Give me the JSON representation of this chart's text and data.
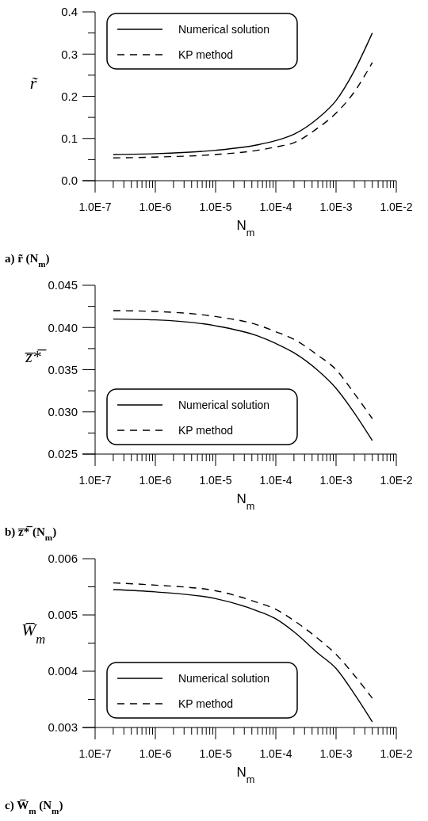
{
  "chart_data": [
    {
      "type": "line",
      "xlabel": "N$_{m}$",
      "ylabel": "r̃",
      "annotations": [
        "a) r̃ (N$_{m}$)"
      ],
      "log": "x",
      "legend": "top left",
      "grid": false,
      "xlim": [
        1e-07,
        0.01
      ],
      "xticks": [
        {
          "value": 1e-07,
          "label": "1.0E-7"
        },
        {
          "value": 2e-07,
          "label": null
        },
        {
          "value": 3e-07,
          "label": null
        },
        {
          "value": 4e-07,
          "label": null
        },
        {
          "value": 5e-07,
          "label": null
        },
        {
          "value": 6e-07,
          "label": null
        },
        {
          "value": 7e-07,
          "label": null
        },
        {
          "value": 8e-07,
          "label": null
        },
        {
          "value": 9e-07,
          "label": null
        },
        {
          "value": 1e-06,
          "label": "1.0E-6"
        },
        {
          "value": 2e-06,
          "label": null
        },
        {
          "value": 3e-06,
          "label": null
        },
        {
          "value": 4e-06,
          "label": null
        },
        {
          "value": 5e-06,
          "label": null
        },
        {
          "value": 6e-06,
          "label": null
        },
        {
          "value": 7e-06,
          "label": null
        },
        {
          "value": 8e-06,
          "label": null
        },
        {
          "value": 9e-06,
          "label": null
        },
        {
          "value": 1e-05,
          "label": "1.0E-5"
        },
        {
          "value": 2e-05,
          "label": null
        },
        {
          "value": 3e-05,
          "label": null
        },
        {
          "value": 4e-05,
          "label": null
        },
        {
          "value": 5e-05,
          "label": null
        },
        {
          "value": 6e-05,
          "label": null
        },
        {
          "value": 7e-05,
          "label": null
        },
        {
          "value": 8e-05,
          "label": null
        },
        {
          "value": 9e-05,
          "label": null
        },
        {
          "value": 0.0001,
          "label": "1.0E-4"
        },
        {
          "value": 0.0002,
          "label": null
        },
        {
          "value": 0.0003,
          "label": null
        },
        {
          "value": 0.0004,
          "label": null
        },
        {
          "value": 0.0005,
          "label": null
        },
        {
          "value": 0.0006,
          "label": null
        },
        {
          "value": 0.0007,
          "label": null
        },
        {
          "value": 0.0008,
          "label": null
        },
        {
          "value": 0.0009,
          "label": null
        },
        {
          "value": 0.001,
          "label": "1.0E-3"
        },
        {
          "value": 0.002,
          "label": null
        },
        {
          "value": 0.003,
          "label": null
        },
        {
          "value": 0.004,
          "label": null
        },
        {
          "value": 0.005,
          "label": null
        },
        {
          "value": 0.006,
          "label": null
        },
        {
          "value": 0.007,
          "label": null
        },
        {
          "value": 0.008,
          "label": null
        },
        {
          "value": 0.009,
          "label": null
        },
        {
          "value": 0.01,
          "label": "1.0E-2"
        }
      ],
      "ylim": [
        0,
        0.4
      ],
      "yticks": [
        {
          "value": 0,
          "label": "0.0"
        },
        {
          "value": 0.05,
          "label": null
        },
        0.1,
        {
          "value": 0.15,
          "label": null
        },
        0.2,
        {
          "value": 0.25,
          "label": null
        },
        0.3,
        {
          "value": 0.35,
          "label": null
        },
        0.4
      ],
      "x": [
        2e-07,
        1e-06,
        1e-05,
        5e-05,
        0.0001,
        0.0002,
        0.0005,
        0.001,
        0.002,
        0.004
      ],
      "series": [
        {
          "name": "Numerical solution",
          "color": "#000000",
          "line_style": "solid",
          "values": [
            0.062,
            0.064,
            0.072,
            0.085,
            0.095,
            0.11,
            0.148,
            0.19,
            0.26,
            0.35
          ]
        },
        {
          "name": "KP method",
          "color": "#000000",
          "line_style": "dashed",
          "values": [
            0.054,
            0.056,
            0.062,
            0.072,
            0.08,
            0.09,
            0.125,
            0.16,
            0.21,
            0.28
          ]
        }
      ]
    },
    {
      "type": "line",
      "xlabel": "N$_{m}$",
      "ylabel": "z̅*̅",
      "annotations": [
        "b) z̅*̅ (N$_{m}$)"
      ],
      "log": "x",
      "legend": "bottom left",
      "grid": false,
      "xlim": [
        1e-07,
        0.01
      ],
      "xticks": [
        {
          "value": 1e-07,
          "label": "1.0E-7"
        },
        {
          "value": 2e-07,
          "label": null
        },
        {
          "value": 3e-07,
          "label": null
        },
        {
          "value": 4e-07,
          "label": null
        },
        {
          "value": 5e-07,
          "label": null
        },
        {
          "value": 6e-07,
          "label": null
        },
        {
          "value": 7e-07,
          "label": null
        },
        {
          "value": 8e-07,
          "label": null
        },
        {
          "value": 9e-07,
          "label": null
        },
        {
          "value": 1e-06,
          "label": "1.0E-6"
        },
        {
          "value": 2e-06,
          "label": null
        },
        {
          "value": 3e-06,
          "label": null
        },
        {
          "value": 4e-06,
          "label": null
        },
        {
          "value": 5e-06,
          "label": null
        },
        {
          "value": 6e-06,
          "label": null
        },
        {
          "value": 7e-06,
          "label": null
        },
        {
          "value": 8e-06,
          "label": null
        },
        {
          "value": 9e-06,
          "label": null
        },
        {
          "value": 1e-05,
          "label": "1.0E-5"
        },
        {
          "value": 2e-05,
          "label": null
        },
        {
          "value": 3e-05,
          "label": null
        },
        {
          "value": 4e-05,
          "label": null
        },
        {
          "value": 5e-05,
          "label": null
        },
        {
          "value": 6e-05,
          "label": null
        },
        {
          "value": 7e-05,
          "label": null
        },
        {
          "value": 8e-05,
          "label": null
        },
        {
          "value": 9e-05,
          "label": null
        },
        {
          "value": 0.0001,
          "label": "1.0E-4"
        },
        {
          "value": 0.0002,
          "label": null
        },
        {
          "value": 0.0003,
          "label": null
        },
        {
          "value": 0.0004,
          "label": null
        },
        {
          "value": 0.0005,
          "label": null
        },
        {
          "value": 0.0006,
          "label": null
        },
        {
          "value": 0.0007,
          "label": null
        },
        {
          "value": 0.0008,
          "label": null
        },
        {
          "value": 0.0009,
          "label": null
        },
        {
          "value": 0.001,
          "label": "1.0E-3"
        },
        {
          "value": 0.002,
          "label": null
        },
        {
          "value": 0.003,
          "label": null
        },
        {
          "value": 0.004,
          "label": null
        },
        {
          "value": 0.005,
          "label": null
        },
        {
          "value": 0.006,
          "label": null
        },
        {
          "value": 0.007,
          "label": null
        },
        {
          "value": 0.008,
          "label": null
        },
        {
          "value": 0.009,
          "label": null
        },
        {
          "value": 0.01,
          "label": "1.0E-2"
        }
      ],
      "ylim": [
        0.025,
        0.045
      ],
      "yticks": [
        {
          "value": 0.025,
          "label": "0.025"
        },
        {
          "value": 0.0275,
          "label": null
        },
        {
          "value": 0.03,
          "label": "0.030"
        },
        {
          "value": 0.0325,
          "label": null
        },
        {
          "value": 0.035,
          "label": "0.035"
        },
        {
          "value": 0.0375,
          "label": null
        },
        {
          "value": 0.04,
          "label": "0.040"
        },
        {
          "value": 0.0425,
          "label": null
        },
        {
          "value": 0.045,
          "label": "0.045"
        }
      ],
      "x": [
        2e-07,
        1e-06,
        1e-05,
        5e-05,
        0.0001,
        0.0002,
        0.0005,
        0.001,
        0.002,
        0.004
      ],
      "series": [
        {
          "name": "Numerical solution",
          "color": "#000000",
          "line_style": "solid",
          "values": [
            0.041,
            0.0409,
            0.0402,
            0.039,
            0.0381,
            0.037,
            0.0349,
            0.0328,
            0.0299,
            0.0266
          ]
        },
        {
          "name": "KP method",
          "color": "#000000",
          "line_style": "dashed",
          "values": [
            0.042,
            0.0419,
            0.0413,
            0.0403,
            0.0395,
            0.0386,
            0.0367,
            0.035,
            0.0322,
            0.0292
          ]
        }
      ]
    },
    {
      "type": "line",
      "xlabel": "N$_{m}$",
      "ylabel": "W̅$_{m}$",
      "annotations": [
        "c) W̅$_{m}$ (N$_{m}$)"
      ],
      "log": "x",
      "legend": "bottom left",
      "grid": false,
      "xlim": [
        1e-07,
        0.01
      ],
      "xticks": [
        {
          "value": 1e-07,
          "label": "1.0E-7"
        },
        {
          "value": 2e-07,
          "label": null
        },
        {
          "value": 3e-07,
          "label": null
        },
        {
          "value": 4e-07,
          "label": null
        },
        {
          "value": 5e-07,
          "label": null
        },
        {
          "value": 6e-07,
          "label": null
        },
        {
          "value": 7e-07,
          "label": null
        },
        {
          "value": 8e-07,
          "label": null
        },
        {
          "value": 9e-07,
          "label": null
        },
        {
          "value": 1e-06,
          "label": "1.0E-6"
        },
        {
          "value": 2e-06,
          "label": null
        },
        {
          "value": 3e-06,
          "label": null
        },
        {
          "value": 4e-06,
          "label": null
        },
        {
          "value": 5e-06,
          "label": null
        },
        {
          "value": 6e-06,
          "label": null
        },
        {
          "value": 7e-06,
          "label": null
        },
        {
          "value": 8e-06,
          "label": null
        },
        {
          "value": 9e-06,
          "label": null
        },
        {
          "value": 1e-05,
          "label": "1.0E-5"
        },
        {
          "value": 2e-05,
          "label": null
        },
        {
          "value": 3e-05,
          "label": null
        },
        {
          "value": 4e-05,
          "label": null
        },
        {
          "value": 5e-05,
          "label": null
        },
        {
          "value": 6e-05,
          "label": null
        },
        {
          "value": 7e-05,
          "label": null
        },
        {
          "value": 8e-05,
          "label": null
        },
        {
          "value": 9e-05,
          "label": null
        },
        {
          "value": 0.0001,
          "label": "1.0E-4"
        },
        {
          "value": 0.0002,
          "label": null
        },
        {
          "value": 0.0003,
          "label": null
        },
        {
          "value": 0.0004,
          "label": null
        },
        {
          "value": 0.0005,
          "label": null
        },
        {
          "value": 0.0006,
          "label": null
        },
        {
          "value": 0.0007,
          "label": null
        },
        {
          "value": 0.0008,
          "label": null
        },
        {
          "value": 0.0009,
          "label": null
        },
        {
          "value": 0.001,
          "label": "1.0E-3"
        },
        {
          "value": 0.002,
          "label": null
        },
        {
          "value": 0.003,
          "label": null
        },
        {
          "value": 0.004,
          "label": null
        },
        {
          "value": 0.005,
          "label": null
        },
        {
          "value": 0.006,
          "label": null
        },
        {
          "value": 0.007,
          "label": null
        },
        {
          "value": 0.008,
          "label": null
        },
        {
          "value": 0.009,
          "label": null
        },
        {
          "value": 0.01,
          "label": "1.0E-2"
        }
      ],
      "ylim": [
        0.003,
        0.006
      ],
      "yticks": [
        0.003,
        {
          "value": 0.0035,
          "label": null
        },
        0.004,
        {
          "value": 0.0045,
          "label": null
        },
        0.005,
        {
          "value": 0.0055,
          "label": null
        },
        0.006
      ],
      "x": [
        2e-07,
        1e-06,
        1e-05,
        5e-05,
        0.0001,
        0.0002,
        0.0005,
        0.001,
        0.002,
        0.004
      ],
      "series": [
        {
          "name": "Numerical solution",
          "color": "#000000",
          "line_style": "solid",
          "values": [
            0.00545,
            0.00541,
            0.00529,
            0.00507,
            0.00493,
            0.0047,
            0.00432,
            0.00405,
            0.0036,
            0.0031
          ]
        },
        {
          "name": "KP method",
          "color": "#000000",
          "line_style": "dashed",
          "values": [
            0.00557,
            0.00553,
            0.00543,
            0.00522,
            0.0051,
            0.0049,
            0.00458,
            0.0043,
            0.00393,
            0.00352
          ]
        }
      ]
    }
  ]
}
